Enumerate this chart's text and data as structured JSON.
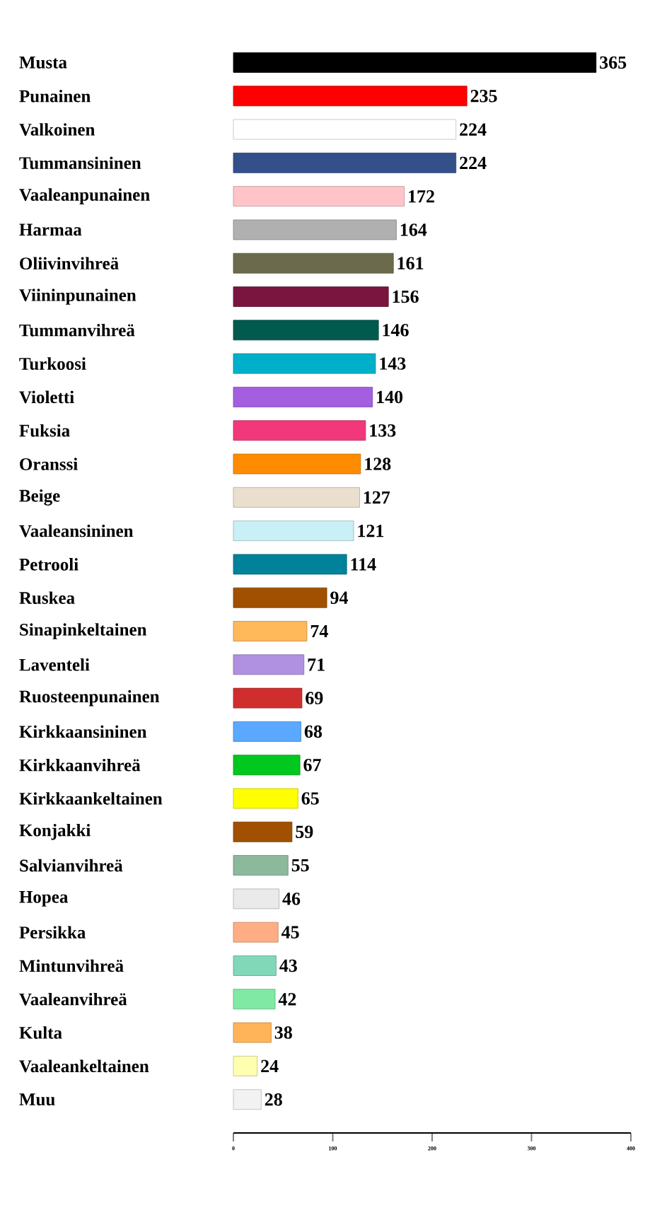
{
  "chart_data": {
    "type": "bar",
    "orientation": "horizontal",
    "data_labels": true,
    "categories": [
      "Musta",
      "Punainen",
      "Valkoinen",
      "Tummansininen",
      "Vaaleanpunainen",
      "Harmaa",
      "Oliivinvihreä",
      "Viininpunainen",
      "Tummanvihreä",
      "Turkoosi",
      "Violetti",
      "Fuksia",
      "Oranssi",
      "Beige",
      "Vaaleansininen",
      "Petrooli",
      "Ruskea",
      "Sinapinkeltainen",
      "Laventeli",
      "Ruosteenpunainen",
      "Kirkkaansininen",
      "Kirkkaanvihreä",
      "Kirkkaankeltainen",
      "Konjakki",
      "Salvianvihreä",
      "Hopea",
      "Persikka",
      "Mintunvihreä",
      "Vaaleanvihreä",
      "Kulta",
      "Vaaleankeltainen",
      "Muu"
    ],
    "values": [
      365,
      235,
      224,
      224,
      172,
      164,
      161,
      156,
      146,
      143,
      140,
      133,
      128,
      127,
      121,
      114,
      94,
      74,
      71,
      69,
      68,
      67,
      65,
      59,
      55,
      46,
      45,
      43,
      42,
      38,
      24,
      28
    ],
    "colors": [
      "#000000",
      "#ff0000",
      "#ffffff",
      "#34508a",
      "#ffc4c8",
      "#b0b0b0",
      "#6b6a4c",
      "#7a1540",
      "#005a4e",
      "#00b0c8",
      "#a45ee0",
      "#f0387a",
      "#ff8c00",
      "#eadfcf",
      "#c8f0f6",
      "#00829a",
      "#a05000",
      "#ffb85a",
      "#b090e0",
      "#d02e2e",
      "#5aa8ff",
      "#00c81e",
      "#ffff00",
      "#a05000",
      "#8cb89c",
      "#eaeaea",
      "#ffae84",
      "#80d8b8",
      "#80eaa4",
      "#ffb45a",
      "#ffffb0",
      "#f2f2f2"
    ],
    "xlim": [
      0,
      400
    ],
    "xticks": [
      0,
      100,
      200,
      300,
      400
    ]
  }
}
